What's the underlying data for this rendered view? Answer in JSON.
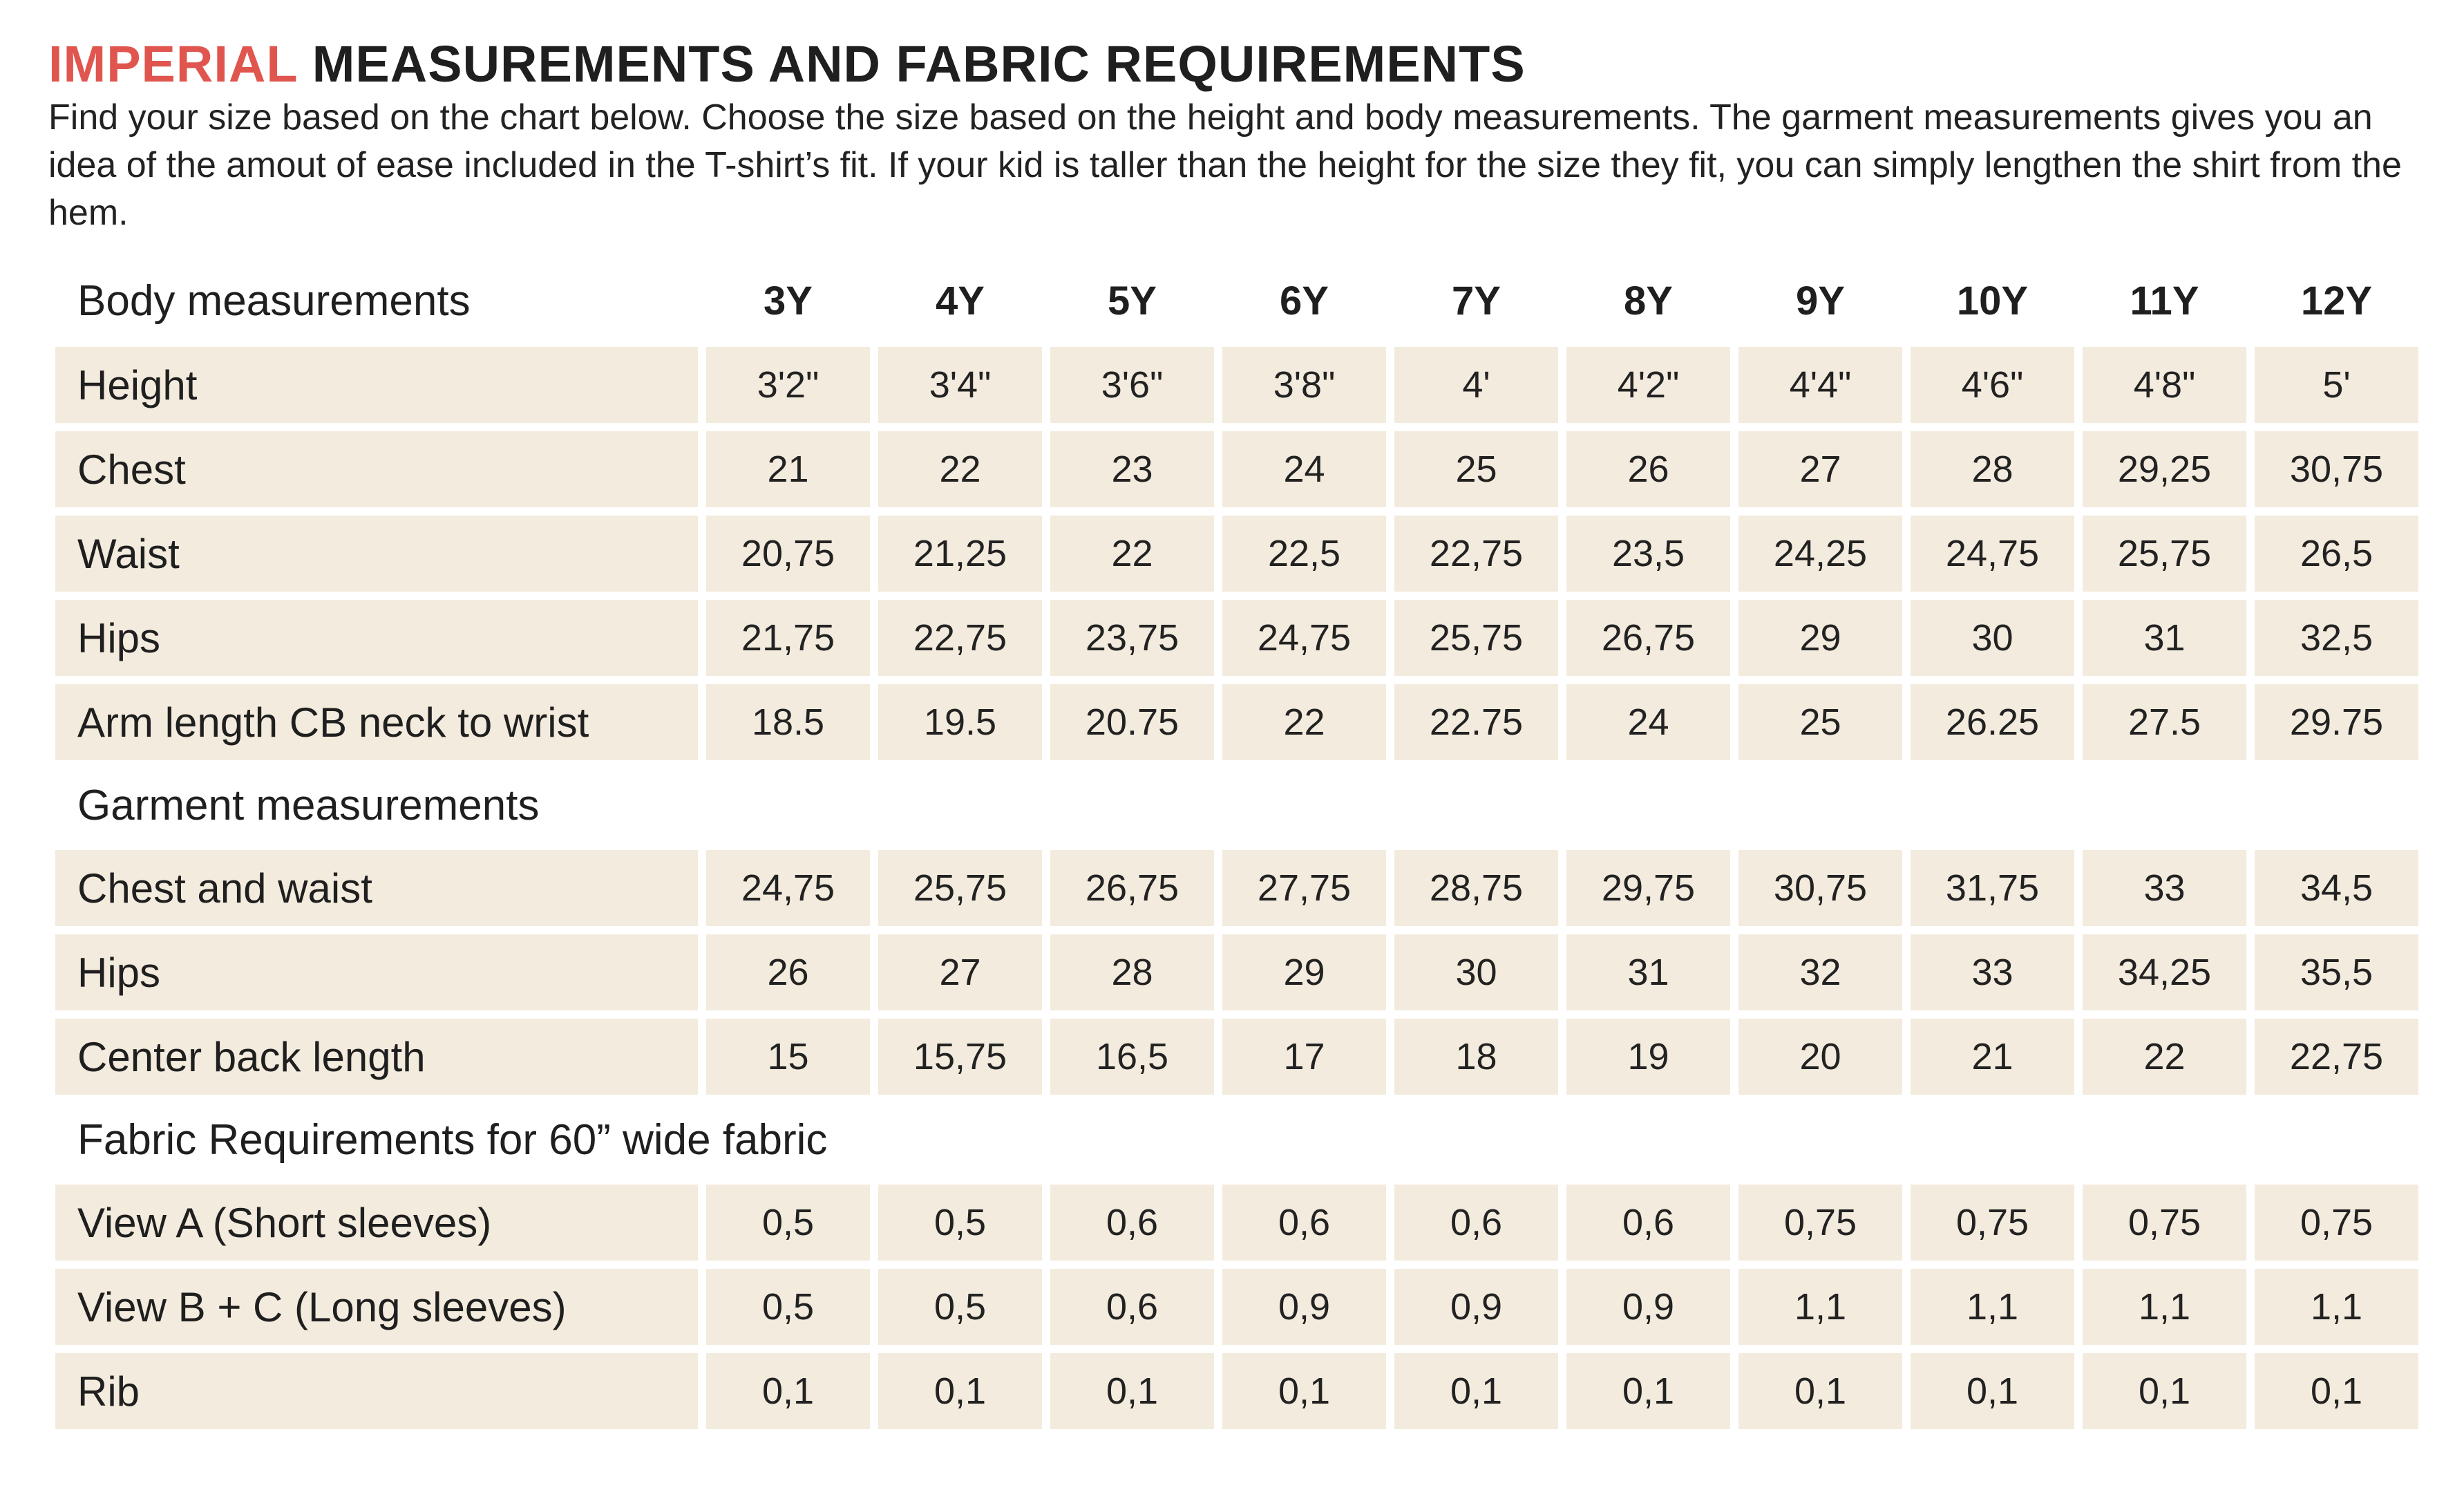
{
  "title": {
    "accent": "IMPERIAL",
    "rest": " MEASUREMENTS AND FABRIC REQUIREMENTS"
  },
  "intro": "Find your size based on the chart below. Choose the size based on the height and body measurements. The garment measurements gives you an idea of the amout of ease included in the T-shirt’s fit. If your kid is taller than the height for the size they fit, you can simply lengthen the shirt from the hem.",
  "sizes": [
    "3Y",
    "4Y",
    "5Y",
    "6Y",
    "7Y",
    "8Y",
    "9Y",
    "10Y",
    "11Y",
    "12Y"
  ],
  "body": {
    "heading": "Body measurements",
    "rows": [
      {
        "label": "Height",
        "values": [
          "3'2\"",
          "3'4\"",
          "3'6\"",
          "3'8\"",
          "4'",
          "4'2\"",
          "4'4\"",
          "4'6\"",
          "4'8\"",
          "5'"
        ]
      },
      {
        "label": "Chest",
        "values": [
          "21",
          "22",
          "23",
          "24",
          "25",
          "26",
          "27",
          "28",
          "29,25",
          "30,75"
        ]
      },
      {
        "label": "Waist",
        "values": [
          "20,75",
          "21,25",
          "22",
          "22,5",
          "22,75",
          "23,5",
          "24,25",
          "24,75",
          "25,75",
          "26,5"
        ]
      },
      {
        "label": "Hips",
        "values": [
          "21,75",
          "22,75",
          "23,75",
          "24,75",
          "25,75",
          "26,75",
          "29",
          "30",
          "31",
          "32,5"
        ]
      },
      {
        "label": "Arm length CB neck to wrist",
        "values": [
          "18.5",
          "19.5",
          "20.75",
          "22",
          "22.75",
          "24",
          "25",
          "26.25",
          "27.5",
          "29.75"
        ]
      }
    ]
  },
  "garment": {
    "heading": "Garment measurements",
    "rows": [
      {
        "label": "Chest and waist",
        "values": [
          "24,75",
          "25,75",
          "26,75",
          "27,75",
          "28,75",
          "29,75",
          "30,75",
          "31,75",
          "33",
          "34,5"
        ]
      },
      {
        "label": "Hips",
        "values": [
          "26",
          "27",
          "28",
          "29",
          "30",
          "31",
          "32",
          "33",
          "34,25",
          "35,5"
        ]
      },
      {
        "label": "Center back length",
        "values": [
          "15",
          "15,75",
          "16,5",
          "17",
          "18",
          "19",
          "20",
          "21",
          "22",
          "22,75"
        ]
      }
    ]
  },
  "fabric": {
    "heading": "Fabric Requirements for  60” wide fabric",
    "rows": [
      {
        "label": "View A (Short sleeves)",
        "values": [
          "0,5",
          "0,5",
          "0,6",
          "0,6",
          "0,6",
          "0,6",
          "0,75",
          "0,75",
          "0,75",
          "0,75"
        ]
      },
      {
        "label": "View B + C (Long sleeves)",
        "values": [
          "0,5",
          "0,5",
          "0,6",
          "0,9",
          "0,9",
          "0,9",
          "1,1",
          "1,1",
          "1,1",
          "1,1"
        ]
      },
      {
        "label": "Rib",
        "values": [
          "0,1",
          "0,1",
          "0,1",
          "0,1",
          "0,1",
          "0,1",
          "0,1",
          "0,1",
          "0,1",
          "0,1"
        ]
      }
    ]
  }
}
